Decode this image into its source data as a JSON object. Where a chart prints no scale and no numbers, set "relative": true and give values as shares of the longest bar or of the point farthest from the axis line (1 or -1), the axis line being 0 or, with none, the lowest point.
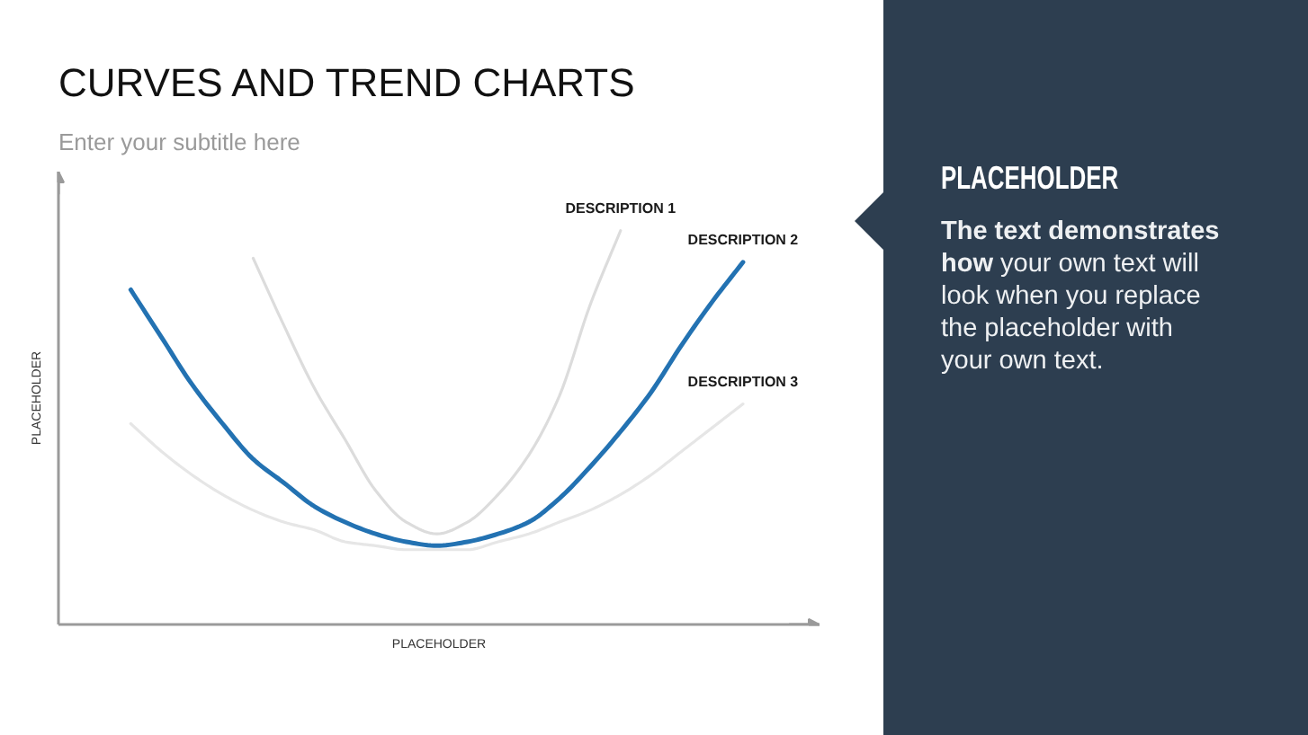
{
  "chart_data": [
    {
      "type": "line",
      "title": "CURVES AND TREND CHARTS",
      "subtitle": "Enter your subtitle here",
      "xlabel": "PLACEHOLDER",
      "ylabel": "PLACEHOLDER",
      "relative": true,
      "categories": [
        null,
        null,
        null,
        null,
        null,
        null,
        null,
        null,
        null,
        null,
        null,
        null,
        null,
        null,
        null,
        null,
        null,
        null,
        null,
        null,
        null
      ],
      "series": [
        {
          "name": "DESCRIPTION 1",
          "color": "#dcdcdc",
          "values": [
            null,
            null,
            null,
            null,
            0.93,
            0.76,
            0.6,
            0.47,
            0.34,
            0.26,
            0.23,
            0.26,
            0.33,
            0.43,
            0.58,
            0.81,
            1.0,
            null,
            null,
            null,
            null
          ]
        },
        {
          "name": "DESCRIPTION 2",
          "color": "#2372b2",
          "values": [
            0.85,
            0.73,
            0.61,
            0.51,
            0.42,
            0.36,
            0.3,
            0.26,
            0.23,
            0.21,
            0.2,
            0.21,
            0.23,
            0.26,
            0.32,
            0.4,
            0.49,
            0.59,
            0.71,
            0.82,
            0.92
          ]
        },
        {
          "name": "DESCRIPTION 3",
          "color": "#e6e6e6",
          "values": [
            0.51,
            0.44,
            0.38,
            0.33,
            0.29,
            0.26,
            0.24,
            0.21,
            0.2,
            0.19,
            0.19,
            0.19,
            0.21,
            0.23,
            0.26,
            0.29,
            0.33,
            0.38,
            0.44,
            0.5,
            0.56
          ]
        }
      ]
    },
    {
      "type": "other",
      "title": "PLACEHOLDER",
      "annotations": [
        "The text demonstrates how",
        "your own text will look when you replace the placeholder with your own text."
      ]
    }
  ]
}
